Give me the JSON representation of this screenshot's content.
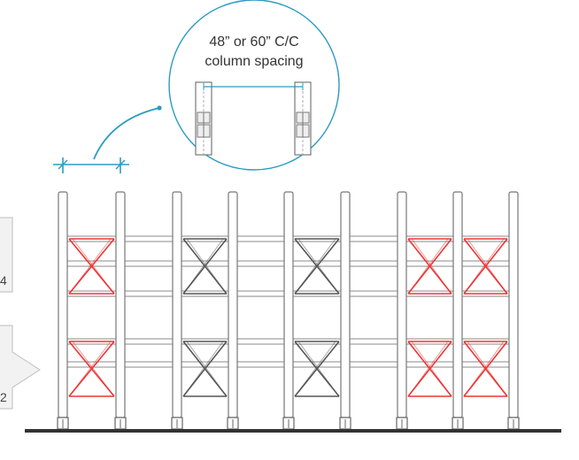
{
  "callout": {
    "line1": "48” or 60” C/C",
    "line2": "column spacing"
  },
  "side_tags": {
    "upper": "4",
    "lower": "2"
  },
  "colors": {
    "callout_accent": "#2b9bc2",
    "braced_bay_red": "#ee3333",
    "braced_bay_gray": "#555555",
    "column_stroke": "#777777",
    "floor": "#333333"
  },
  "rack": {
    "column_count": 9,
    "braced_bays": [
      {
        "bay": 1,
        "color": "red"
      },
      {
        "bay": 3,
        "color": "gray"
      },
      {
        "bay": 5,
        "color": "gray"
      },
      {
        "bay": 7,
        "color": "red"
      },
      {
        "bay": 8,
        "color": "red"
      }
    ]
  }
}
